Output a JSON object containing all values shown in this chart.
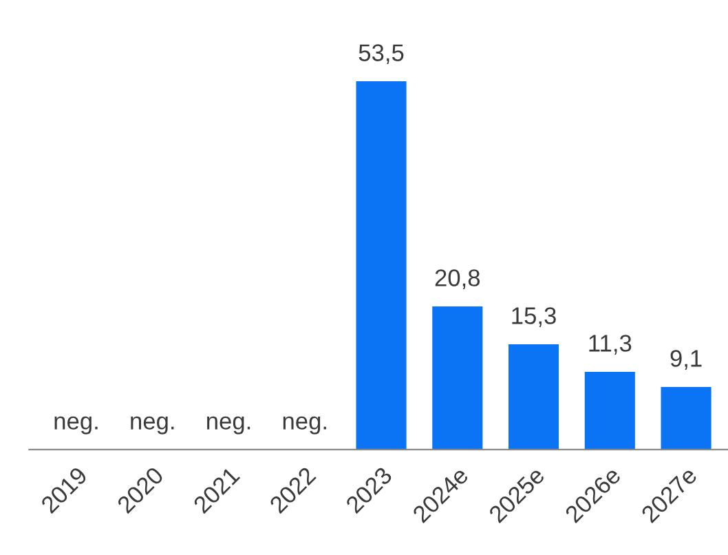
{
  "chart_data": {
    "type": "bar",
    "categories": [
      "2019",
      "2020",
      "2021",
      "2022",
      "2023",
      "2024e",
      "2025e",
      "2026e",
      "2027e"
    ],
    "values": [
      null,
      null,
      null,
      null,
      53.5,
      20.8,
      15.3,
      11.3,
      9.1
    ],
    "value_labels": [
      "neg.",
      "neg.",
      "neg.",
      "neg.",
      "53,5",
      "20,8",
      "15,3",
      "11,3",
      "9,1"
    ],
    "color": "#0a74f5",
    "grid": false,
    "legend": false
  }
}
